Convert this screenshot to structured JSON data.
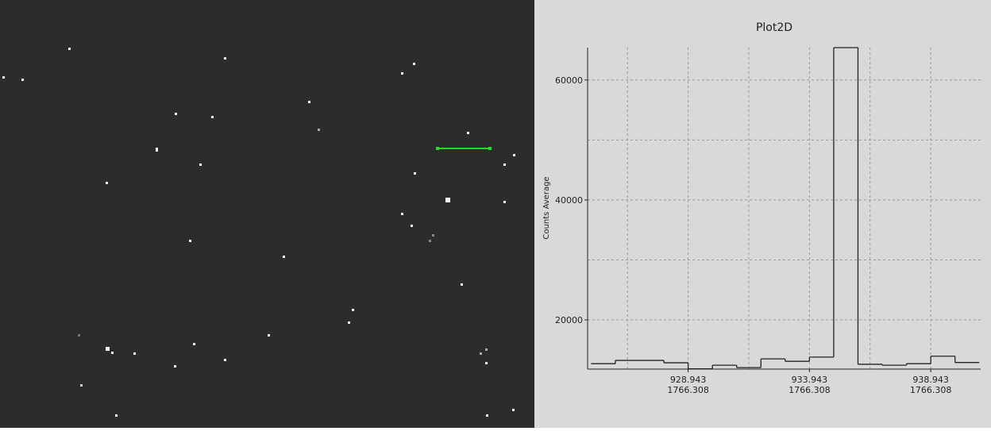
{
  "chart_data": {
    "type": "histogram",
    "title": "Plot2D",
    "y_label": "Counts Average",
    "bins": [
      924.943,
      925.943,
      926.943,
      927.943,
      928.943,
      929.943,
      930.943,
      931.943,
      932.943,
      933.943,
      934.943,
      935.943,
      936.943,
      937.943,
      938.943,
      939.943,
      940.943
    ],
    "values": [
      12700,
      13250,
      13250,
      12850,
      11850,
      12450,
      12050,
      13500,
      13100,
      13800,
      65400,
      12600,
      12450,
      12700,
      13950,
      12900
    ],
    "color": "#222222",
    "xlim": [
      924.8,
      941.0
    ],
    "ylim": [
      11800,
      65400
    ],
    "xticks": [
      928.943,
      933.943,
      938.943
    ],
    "xticks_secondary": [
      "1766.308",
      "1766.308",
      "1766.308"
    ],
    "xgrid": [
      926.443,
      928.943,
      931.443,
      933.943,
      936.443,
      938.943
    ],
    "yticks": [
      20000,
      40000,
      60000
    ],
    "ygrid": [
      20000,
      30000,
      40000,
      50000,
      60000
    ],
    "grid": true
  }
}
